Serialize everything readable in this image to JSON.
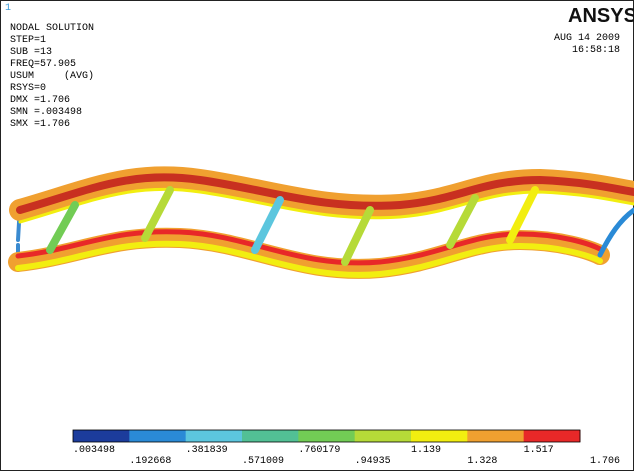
{
  "window_number": "1",
  "logo": "ANSYS",
  "info": [
    "NODAL SOLUTION",
    "STEP=1",
    "SUB =13",
    "FREQ=57.905",
    "USUM     (AVG)",
    "RSYS=0",
    "DMX =1.706",
    "SMN =.003498",
    "SMX =1.706"
  ],
  "date": "AUG 14 2009",
  "time": "16:58:18",
  "legend": {
    "colors": [
      "#1c3c9c",
      "#2a8ad6",
      "#5cc6de",
      "#52c095",
      "#72cc55",
      "#b6da38",
      "#f2ee10",
      "#f0a030",
      "#e82828"
    ],
    "labels": [
      ".003498",
      ".192668",
      ".381839",
      ".571009",
      ".760179",
      ".94935",
      "1.139",
      "1.328",
      "1.517",
      "1.706"
    ]
  }
}
